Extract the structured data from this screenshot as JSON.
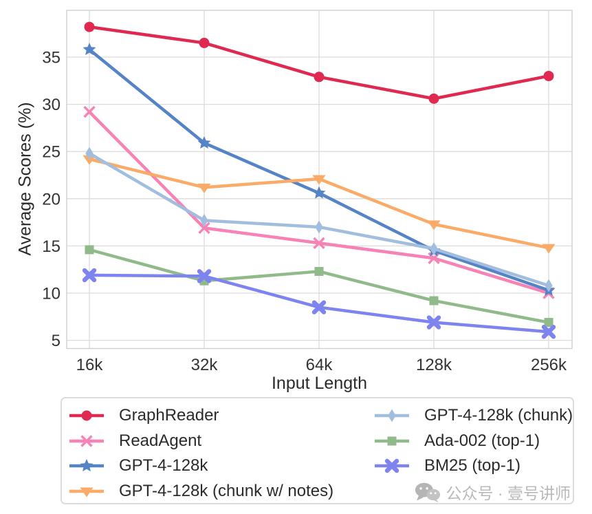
{
  "chart_data": {
    "type": "line",
    "x_categories": [
      "16k",
      "32k",
      "64k",
      "128k",
      "256k"
    ],
    "xlabel": "Input Length",
    "ylabel": "Average Scores (%)",
    "yticks": [
      5,
      10,
      15,
      20,
      25,
      30,
      35
    ],
    "ylim": [
      4,
      40
    ],
    "grid": true,
    "legend_position": "bottom",
    "grid_color": "#dcdcdc",
    "series": [
      {
        "name": "GraphReader",
        "color": "#e02950",
        "marker": "circle",
        "values": [
          38.2,
          36.5,
          32.9,
          30.6,
          33.0
        ]
      },
      {
        "name": "ReadAgent",
        "color": "#f782b5",
        "marker": "x",
        "values": [
          29.2,
          16.9,
          15.3,
          13.7,
          10.0
        ]
      },
      {
        "name": "GPT-4-128k",
        "color": "#5584c6",
        "marker": "star",
        "values": [
          35.8,
          25.9,
          20.6,
          14.5,
          10.3
        ]
      },
      {
        "name": "GPT-4-128k (chunk w/ notes)",
        "color": "#f9ab67",
        "marker": "triangle-down",
        "values": [
          24.2,
          21.2,
          22.1,
          17.3,
          14.8
        ]
      },
      {
        "name": "GPT-4-128k (chunk)",
        "color": "#a2bede",
        "marker": "diamond",
        "values": [
          24.8,
          17.7,
          17.0,
          14.7,
          10.8
        ]
      },
      {
        "name": "Ada-002 (top-1)",
        "color": "#90ba89",
        "marker": "square",
        "values": [
          14.6,
          11.3,
          12.3,
          9.2,
          6.9
        ]
      },
      {
        "name": "BM25 (top-1)",
        "color": "#7e84ef",
        "marker": "X",
        "values": [
          11.9,
          11.8,
          8.5,
          6.9,
          5.9
        ]
      }
    ]
  },
  "legend": {
    "left_column": [
      "GraphReader",
      "ReadAgent",
      "GPT-4-128k",
      "GPT-4-128k (chunk w/ notes)"
    ],
    "right_column": [
      "GPT-4-128k (chunk)",
      "Ada-002 (top-1)",
      "BM25 (top-1)"
    ]
  },
  "watermark": {
    "icon": "wechat-icon",
    "text": "公众号 · 壹号讲师",
    "color": "#b9b9b9"
  }
}
